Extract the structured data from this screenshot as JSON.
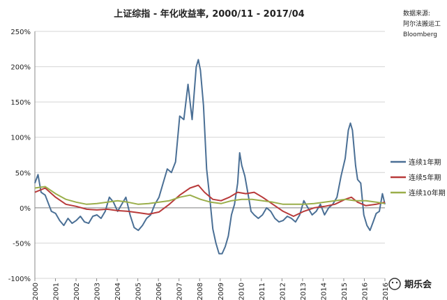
{
  "chart_data": {
    "type": "line",
    "title": "上证综指 - 年化收益率, 2000/11 - 2017/04",
    "source_lines": [
      "数据来源:",
      "阿尔法搬运工",
      "Bloomberg"
    ],
    "watermark": "期乐会",
    "x_range": [
      2000.0,
      2016.92
    ],
    "ylim": [
      -100,
      250
    ],
    "y_ticks": [
      -100,
      -50,
      0,
      50,
      100,
      150,
      200,
      250
    ],
    "y_tick_labels": [
      "-100%",
      "-50%",
      "0%",
      "50%",
      "100%",
      "150%",
      "200%",
      "250%"
    ],
    "x_tick_labels": [
      "2000",
      "2001",
      "2002",
      "2003",
      "2004",
      "2005",
      "2006",
      "2007",
      "2008",
      "2009",
      "2010",
      "2011",
      "2012",
      "2013",
      "2014",
      "2015",
      "2016",
      "2016"
    ],
    "grid": true,
    "legend_position": "right",
    "series": [
      {
        "name": "连续1年期",
        "color": "#4a6f95",
        "points": [
          [
            2000.0,
            35
          ],
          [
            2000.15,
            47
          ],
          [
            2000.3,
            22
          ],
          [
            2000.5,
            18
          ],
          [
            2000.8,
            -5
          ],
          [
            2001.0,
            -8
          ],
          [
            2001.2,
            -18
          ],
          [
            2001.4,
            -25
          ],
          [
            2001.6,
            -15
          ],
          [
            2001.8,
            -22
          ],
          [
            2002.0,
            -18
          ],
          [
            2002.2,
            -12
          ],
          [
            2002.4,
            -20
          ],
          [
            2002.6,
            -22
          ],
          [
            2002.8,
            -12
          ],
          [
            2003.0,
            -10
          ],
          [
            2003.2,
            -15
          ],
          [
            2003.4,
            -5
          ],
          [
            2003.6,
            15
          ],
          [
            2003.8,
            8
          ],
          [
            2004.0,
            -5
          ],
          [
            2004.2,
            5
          ],
          [
            2004.4,
            15
          ],
          [
            2004.6,
            -10
          ],
          [
            2004.8,
            -28
          ],
          [
            2005.0,
            -32
          ],
          [
            2005.2,
            -25
          ],
          [
            2005.4,
            -15
          ],
          [
            2005.6,
            -10
          ],
          [
            2005.8,
            5
          ],
          [
            2006.0,
            15
          ],
          [
            2006.2,
            35
          ],
          [
            2006.4,
            55
          ],
          [
            2006.6,
            50
          ],
          [
            2006.8,
            65
          ],
          [
            2007.0,
            130
          ],
          [
            2007.2,
            125
          ],
          [
            2007.4,
            175
          ],
          [
            2007.6,
            125
          ],
          [
            2007.8,
            200
          ],
          [
            2007.9,
            210
          ],
          [
            2008.0,
            195
          ],
          [
            2008.15,
            145
          ],
          [
            2008.3,
            55
          ],
          [
            2008.45,
            15
          ],
          [
            2008.6,
            -30
          ],
          [
            2008.75,
            -50
          ],
          [
            2008.9,
            -65
          ],
          [
            2009.05,
            -65
          ],
          [
            2009.2,
            -55
          ],
          [
            2009.35,
            -40
          ],
          [
            2009.5,
            -10
          ],
          [
            2009.65,
            5
          ],
          [
            2009.8,
            35
          ],
          [
            2009.9,
            78
          ],
          [
            2010.0,
            60
          ],
          [
            2010.15,
            45
          ],
          [
            2010.3,
            20
          ],
          [
            2010.45,
            -5
          ],
          [
            2010.6,
            -10
          ],
          [
            2010.8,
            -15
          ],
          [
            2011.0,
            -10
          ],
          [
            2011.2,
            0
          ],
          [
            2011.4,
            -5
          ],
          [
            2011.6,
            -15
          ],
          [
            2011.8,
            -20
          ],
          [
            2012.0,
            -18
          ],
          [
            2012.2,
            -12
          ],
          [
            2012.4,
            -15
          ],
          [
            2012.6,
            -20
          ],
          [
            2012.8,
            -10
          ],
          [
            2013.0,
            10
          ],
          [
            2013.2,
            0
          ],
          [
            2013.4,
            -10
          ],
          [
            2013.6,
            -5
          ],
          [
            2013.8,
            5
          ],
          [
            2014.0,
            -10
          ],
          [
            2014.2,
            0
          ],
          [
            2014.4,
            5
          ],
          [
            2014.6,
            15
          ],
          [
            2014.8,
            45
          ],
          [
            2015.0,
            70
          ],
          [
            2015.15,
            110
          ],
          [
            2015.25,
            120
          ],
          [
            2015.35,
            110
          ],
          [
            2015.5,
            60
          ],
          [
            2015.6,
            40
          ],
          [
            2015.75,
            35
          ],
          [
            2015.9,
            -10
          ],
          [
            2016.05,
            -25
          ],
          [
            2016.2,
            -32
          ],
          [
            2016.35,
            -20
          ],
          [
            2016.5,
            -8
          ],
          [
            2016.65,
            -5
          ],
          [
            2016.8,
            20
          ],
          [
            2016.92,
            5
          ]
        ]
      },
      {
        "name": "连续5年期",
        "color": "#b83a3a",
        "points": [
          [
            2000.0,
            22
          ],
          [
            2000.5,
            28
          ],
          [
            2001.0,
            15
          ],
          [
            2001.5,
            5
          ],
          [
            2002.0,
            2
          ],
          [
            2002.5,
            -2
          ],
          [
            2003.0,
            -3
          ],
          [
            2003.5,
            -2
          ],
          [
            2004.0,
            -4
          ],
          [
            2004.5,
            -5
          ],
          [
            2005.0,
            -7
          ],
          [
            2005.5,
            -9
          ],
          [
            2006.0,
            -6
          ],
          [
            2006.5,
            5
          ],
          [
            2007.0,
            18
          ],
          [
            2007.5,
            28
          ],
          [
            2007.9,
            32
          ],
          [
            2008.2,
            22
          ],
          [
            2008.6,
            12
          ],
          [
            2009.0,
            10
          ],
          [
            2009.4,
            15
          ],
          [
            2009.8,
            22
          ],
          [
            2010.2,
            20
          ],
          [
            2010.6,
            22
          ],
          [
            2011.0,
            15
          ],
          [
            2011.5,
            5
          ],
          [
            2012.0,
            -5
          ],
          [
            2012.5,
            -12
          ],
          [
            2013.0,
            -5
          ],
          [
            2013.5,
            0
          ],
          [
            2014.0,
            2
          ],
          [
            2014.5,
            5
          ],
          [
            2015.0,
            12
          ],
          [
            2015.3,
            15
          ],
          [
            2015.6,
            8
          ],
          [
            2016.0,
            3
          ],
          [
            2016.5,
            5
          ],
          [
            2016.92,
            8
          ]
        ]
      },
      {
        "name": "连续10年期",
        "color": "#9aae4a",
        "points": [
          [
            2000.0,
            28
          ],
          [
            2000.5,
            30
          ],
          [
            2001.0,
            20
          ],
          [
            2001.5,
            12
          ],
          [
            2002.0,
            8
          ],
          [
            2002.5,
            5
          ],
          [
            2003.0,
            6
          ],
          [
            2003.5,
            8
          ],
          [
            2004.0,
            10
          ],
          [
            2004.5,
            8
          ],
          [
            2005.0,
            5
          ],
          [
            2005.5,
            6
          ],
          [
            2006.0,
            8
          ],
          [
            2006.5,
            10
          ],
          [
            2007.0,
            15
          ],
          [
            2007.5,
            18
          ],
          [
            2008.0,
            12
          ],
          [
            2008.5,
            8
          ],
          [
            2009.0,
            6
          ],
          [
            2009.5,
            10
          ],
          [
            2010.0,
            12
          ],
          [
            2010.5,
            12
          ],
          [
            2011.0,
            10
          ],
          [
            2011.5,
            8
          ],
          [
            2012.0,
            5
          ],
          [
            2012.5,
            5
          ],
          [
            2013.0,
            5
          ],
          [
            2013.5,
            6
          ],
          [
            2014.0,
            8
          ],
          [
            2014.5,
            10
          ],
          [
            2015.0,
            12
          ],
          [
            2015.5,
            10
          ],
          [
            2016.0,
            10
          ],
          [
            2016.5,
            8
          ],
          [
            2016.92,
            6
          ]
        ]
      }
    ]
  }
}
